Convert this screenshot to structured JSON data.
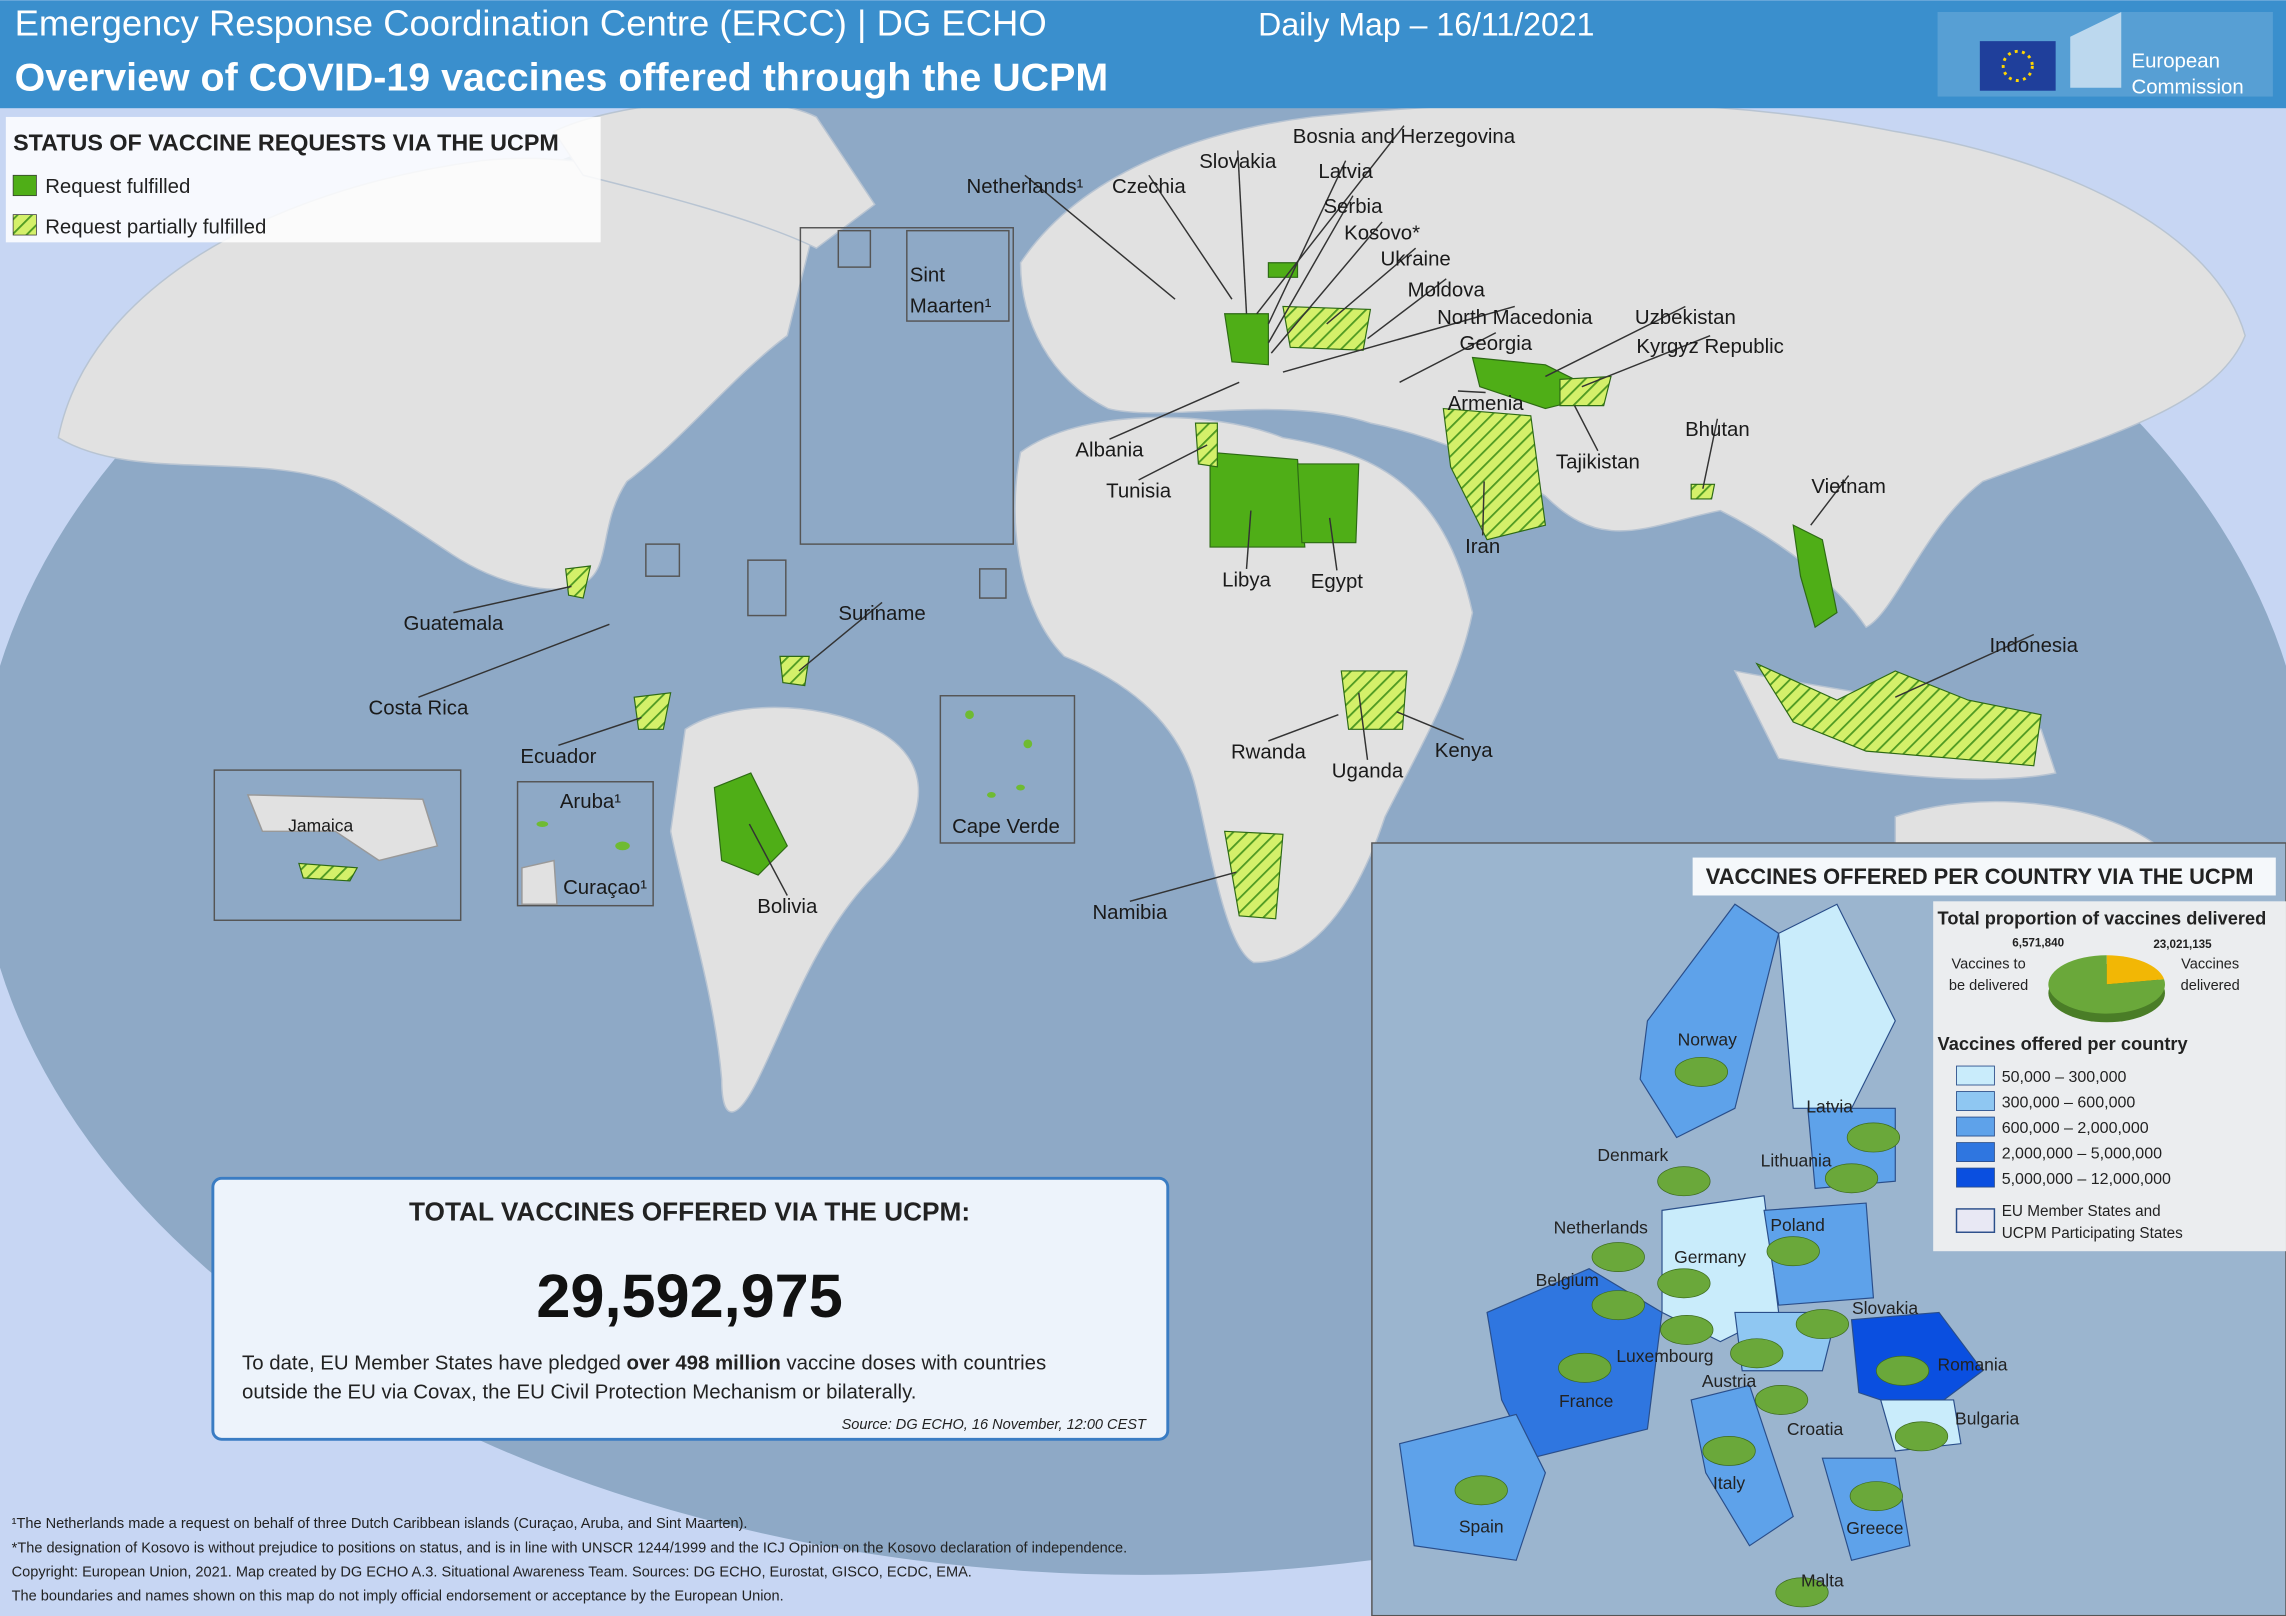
{
  "header": {
    "agency": "Emergency Response Coordination Centre (ERCC) | DG ECHO",
    "date": "Daily Map – 16/11/2021",
    "title": "Overview of COVID-19 vaccines offered through the UCPM",
    "logo": [
      "European",
      "Commission"
    ]
  },
  "legend": {
    "title": "STATUS OF VACCINE REQUESTS VIA THE UCPM",
    "items": [
      "Request fulfilled",
      "Request partially fulfilled"
    ]
  },
  "country_labels": [
    "Bosnia and Herzegovina",
    "Slovakia",
    "Latvia",
    "Netherlands¹",
    "Czechia",
    "Serbia",
    "Kosovo*",
    "Ukraine",
    "Moldova",
    "North Macedonia",
    "Uzbekistan",
    "Georgia",
    "Kyrgyz Republic",
    "Armenia",
    "Bhutan",
    "Albania",
    "Tajikistan",
    "Tunisia",
    "Vietnam",
    "Iran",
    "Libya",
    "Egypt",
    "Guatemala",
    "Suriname",
    "Indonesia",
    "Costa Rica",
    "Rwanda",
    "Uganda",
    "Kenya",
    "Ecuador",
    "Namibia",
    "Bolivia"
  ],
  "insets": {
    "sint_maarten": [
      "Sint",
      "Maarten¹"
    ],
    "jamaica": "Jamaica",
    "aruba": "Aruba¹",
    "curacao": "Curaçao¹",
    "cape_verde": "Cape Verde"
  },
  "total_box": {
    "title": "TOTAL VACCINES OFFERED VIA THE UCPM:",
    "total": "29,592,975",
    "text": [
      "To date, EU Member States have pledged ",
      "over 498 million",
      " vaccine doses with countries",
      "outside the EU via Covax, the EU Civil Protection Mechanism or bilaterally."
    ],
    "source": "Source: DG ECHO, 16 November, 12:00 CEST"
  },
  "europe_inset": {
    "title": "VACCINES OFFERED PER COUNTRY VIA THE UCPM",
    "pie": {
      "type": "pie",
      "title": "Total proportion of vaccines delivered",
      "categories": [
        [
          "Vaccines to",
          "be delivered"
        ],
        [
          "Vaccines",
          "delivered"
        ]
      ],
      "values": [
        6571840,
        23021135
      ],
      "value_labels": [
        "6,571,840",
        "23,021,135"
      ],
      "colors": [
        "#f2b705",
        "#6aa83a"
      ]
    },
    "classes": {
      "title": "Vaccines offered per country",
      "items": [
        "50,000 – 300,000",
        "300,000 – 600,000",
        "600,000 – 2,000,000",
        "2,000,000 – 5,000,000",
        "5,000,000 – 12,000,000"
      ],
      "colors": [
        "#c9ecfb",
        "#8fc7f2",
        "#5ea2ea",
        "#2f76e0",
        "#0a4fe0"
      ],
      "members": [
        "EU Member States and",
        "UCPM Participating States"
      ]
    },
    "labels": [
      "Norway",
      "Latvia",
      "Denmark",
      "Lithuania",
      "Netherlands",
      "Poland",
      "Germany",
      "Belgium",
      "Slovakia",
      "Luxembourg",
      "Romania",
      "Austria",
      "France",
      "Croatia",
      "Bulgaria",
      "Italy",
      "Spain",
      "Greece",
      "Malta"
    ]
  },
  "footnotes": [
    "¹The Netherlands made a request on behalf of three Dutch Caribbean islands (Curaçao, Aruba, and Sint Maarten).",
    "*The designation of Kosovo is without prejudice to positions on status, and is in line with UNSCR 1244/1999 and the ICJ Opinion on the Kosovo declaration of independence.",
    "Copyright: European Union, 2021. Map created by DG ECHO A.3. Situational Awareness Team. Sources: DG ECHO, Eurostat, GISCO, ECDC, EMA.",
    "The boundaries and names shown on this map do not imply official endorsement or acceptance by the European Union."
  ]
}
